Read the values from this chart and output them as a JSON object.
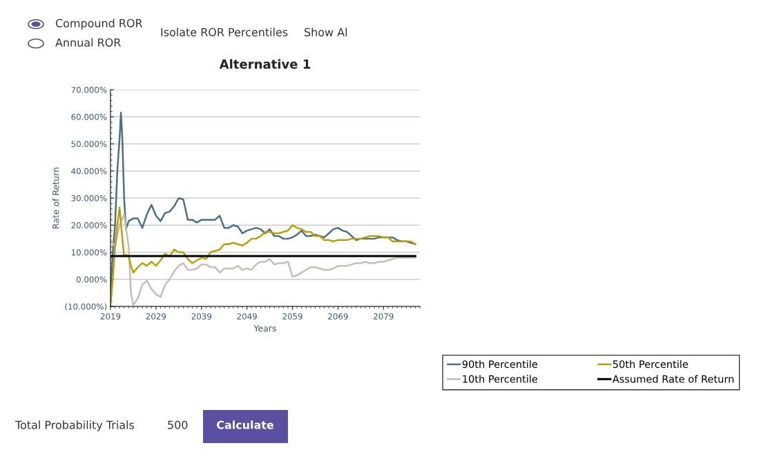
{
  "chart_data": {
    "type": "line",
    "title": "Alternative 1",
    "xlabel": "Years",
    "ylabel": "Rate of Return",
    "annotations": [
      "Compound ROR",
      "Annual ROR",
      "Isolate ROR Percentiles",
      "Show Al",
      "Total Probability Trials",
      "500",
      "Calculate"
    ],
    "xlim": [
      2019,
      2087
    ],
    "xticks": [
      2019,
      2029,
      2039,
      2049,
      2059,
      2069,
      2079
    ],
    "ylim": [
      -10,
      70
    ],
    "yticks": [
      {
        "value": -10,
        "label": "(10.000%)"
      },
      {
        "value": 0,
        "label": "0.000%"
      },
      {
        "value": 10,
        "label": "10.000%"
      },
      {
        "value": 20,
        "label": "20.000%"
      },
      {
        "value": 30,
        "label": "30.000%"
      },
      {
        "value": 40,
        "label": "40.000%"
      },
      {
        "value": 50,
        "label": "50.000%"
      },
      {
        "value": 60,
        "label": "60.000%"
      },
      {
        "value": 70,
        "label": "70.000%"
      }
    ],
    "grid": "y",
    "legend": "bottom right",
    "marker": "none",
    "line_style": "solid",
    "series": [
      {
        "name": "90th Percentile",
        "color": "#4a7088",
        "x": [
          2019,
          2019.5,
          2020,
          2020.5,
          2021,
          2021.3,
          2021.6,
          2022,
          2022.4,
          2023,
          2024,
          2025,
          2026,
          2027,
          2028,
          2029,
          2030,
          2031,
          2032,
          2033,
          2034,
          2035,
          2036,
          2037,
          2038,
          2039,
          2040,
          2041,
          2042,
          2043,
          2044,
          2045,
          2046,
          2047,
          2048,
          2049,
          2050,
          2051,
          2052,
          2053,
          2054,
          2055,
          2056,
          2057,
          2058,
          2059,
          2060,
          2061,
          2062,
          2063,
          2064,
          2065,
          2066,
          2067,
          2068,
          2069,
          2070,
          2071,
          2072,
          2073,
          2074,
          2075,
          2076,
          2077,
          2078,
          2079,
          2080,
          2081,
          2082,
          2083,
          2084,
          2085,
          2086
        ],
        "values": [
          -5,
          10,
          20,
          40,
          52,
          61.5,
          52,
          30,
          18.5,
          21.5,
          22.5,
          22.5,
          19,
          24,
          27.5,
          23.5,
          21.5,
          24.5,
          25,
          27,
          30,
          29.5,
          22,
          22,
          21,
          22,
          22,
          22,
          22,
          23.5,
          19,
          19,
          20,
          19.5,
          17,
          18,
          18.5,
          19,
          18.5,
          17,
          18.5,
          16,
          16,
          15,
          15,
          15.5,
          16.5,
          18,
          16,
          16,
          16.5,
          16,
          15.5,
          17,
          18.5,
          19,
          18,
          17.5,
          16,
          14.5,
          15,
          15,
          15,
          15,
          15.5,
          15.5,
          15.5,
          15.5,
          14.5,
          14,
          14,
          13.5,
          13
        ]
      },
      {
        "name": "10th Percentile",
        "color": "#c8bcb6",
        "x": [
          2019,
          2020,
          2021,
          2022,
          2023,
          2023.5,
          2024,
          2025,
          2026,
          2027,
          2028,
          2029,
          2030,
          2031,
          2032,
          2033,
          2034,
          2035,
          2036,
          2037,
          2038,
          2039,
          2040,
          2041,
          2042,
          2043,
          2044,
          2045,
          2046,
          2047,
          2048,
          2049,
          2050,
          2051,
          2052,
          2053,
          2054,
          2055,
          2056,
          2057,
          2058,
          2059,
          2060,
          2061,
          2062,
          2063,
          2064,
          2065,
          2066,
          2067,
          2068,
          2069,
          2070,
          2071,
          2072,
          2073,
          2074,
          2075,
          2076,
          2077,
          2078,
          2079,
          2080,
          2081,
          2082,
          2083,
          2084,
          2085,
          2086
        ],
        "values": [
          14.5,
          12,
          20,
          24,
          12,
          -5,
          -9.5,
          -7,
          -2,
          -0.5,
          -3.5,
          -5.5,
          -6.5,
          -2,
          0,
          3,
          5,
          6,
          3.5,
          3.5,
          4,
          5.5,
          5.5,
          4.5,
          4.5,
          2.5,
          4,
          4,
          4,
          5,
          3.5,
          4,
          3.5,
          5.5,
          6.5,
          6.5,
          7.5,
          5.5,
          6,
          6,
          6.5,
          1,
          1.5,
          2.5,
          3.5,
          4.5,
          4.5,
          4,
          3.5,
          3.5,
          4,
          5,
          5,
          5,
          5.5,
          6,
          6,
          6.5,
          6,
          6,
          6.5,
          6.5,
          7,
          7.5,
          8,
          8,
          8,
          8,
          8
        ]
      },
      {
        "name": "50th Percentile",
        "color": "#bba000",
        "x": [
          2019,
          2019.5,
          2020,
          2020.5,
          2021,
          2021.5,
          2022,
          2022.5,
          2023,
          2023.5,
          2024,
          2025,
          2026,
          2027,
          2028,
          2029,
          2030,
          2031,
          2032,
          2033,
          2034,
          2035,
          2036,
          2037,
          2038,
          2039,
          2040,
          2041,
          2042,
          2043,
          2044,
          2045,
          2046,
          2047,
          2048,
          2049,
          2050,
          2051,
          2052,
          2053,
          2054,
          2055,
          2056,
          2057,
          2058,
          2059,
          2060,
          2061,
          2062,
          2063,
          2064,
          2065,
          2066,
          2067,
          2068,
          2069,
          2070,
          2071,
          2072,
          2073,
          2074,
          2075,
          2076,
          2077,
          2078,
          2079,
          2080,
          2081,
          2082,
          2083,
          2084,
          2085,
          2086
        ],
        "values": [
          -9.5,
          0,
          12,
          20,
          26.5,
          17,
          8.5,
          9,
          8.5,
          5,
          2.5,
          4.5,
          6,
          5,
          6.5,
          5,
          7,
          9.5,
          8.5,
          11,
          10,
          10,
          7.5,
          6,
          7,
          8,
          7.5,
          10,
          10.5,
          11,
          13,
          13,
          13.5,
          13,
          12.5,
          13.5,
          15,
          15,
          16,
          17.5,
          17.5,
          17,
          17,
          17.5,
          18,
          20,
          19,
          18.5,
          17.5,
          17.5,
          16,
          16,
          14.5,
          14.5,
          14,
          14.5,
          14.5,
          14.5,
          15,
          15,
          15,
          15.5,
          16,
          16,
          16,
          15.5,
          15.5,
          14,
          14,
          14,
          14,
          14,
          13
        ]
      },
      {
        "name": "Assumed Rate of Return",
        "color": "#000000",
        "x": [
          2019,
          2086
        ],
        "values": [
          8.6,
          8.6
        ]
      }
    ]
  }
}
